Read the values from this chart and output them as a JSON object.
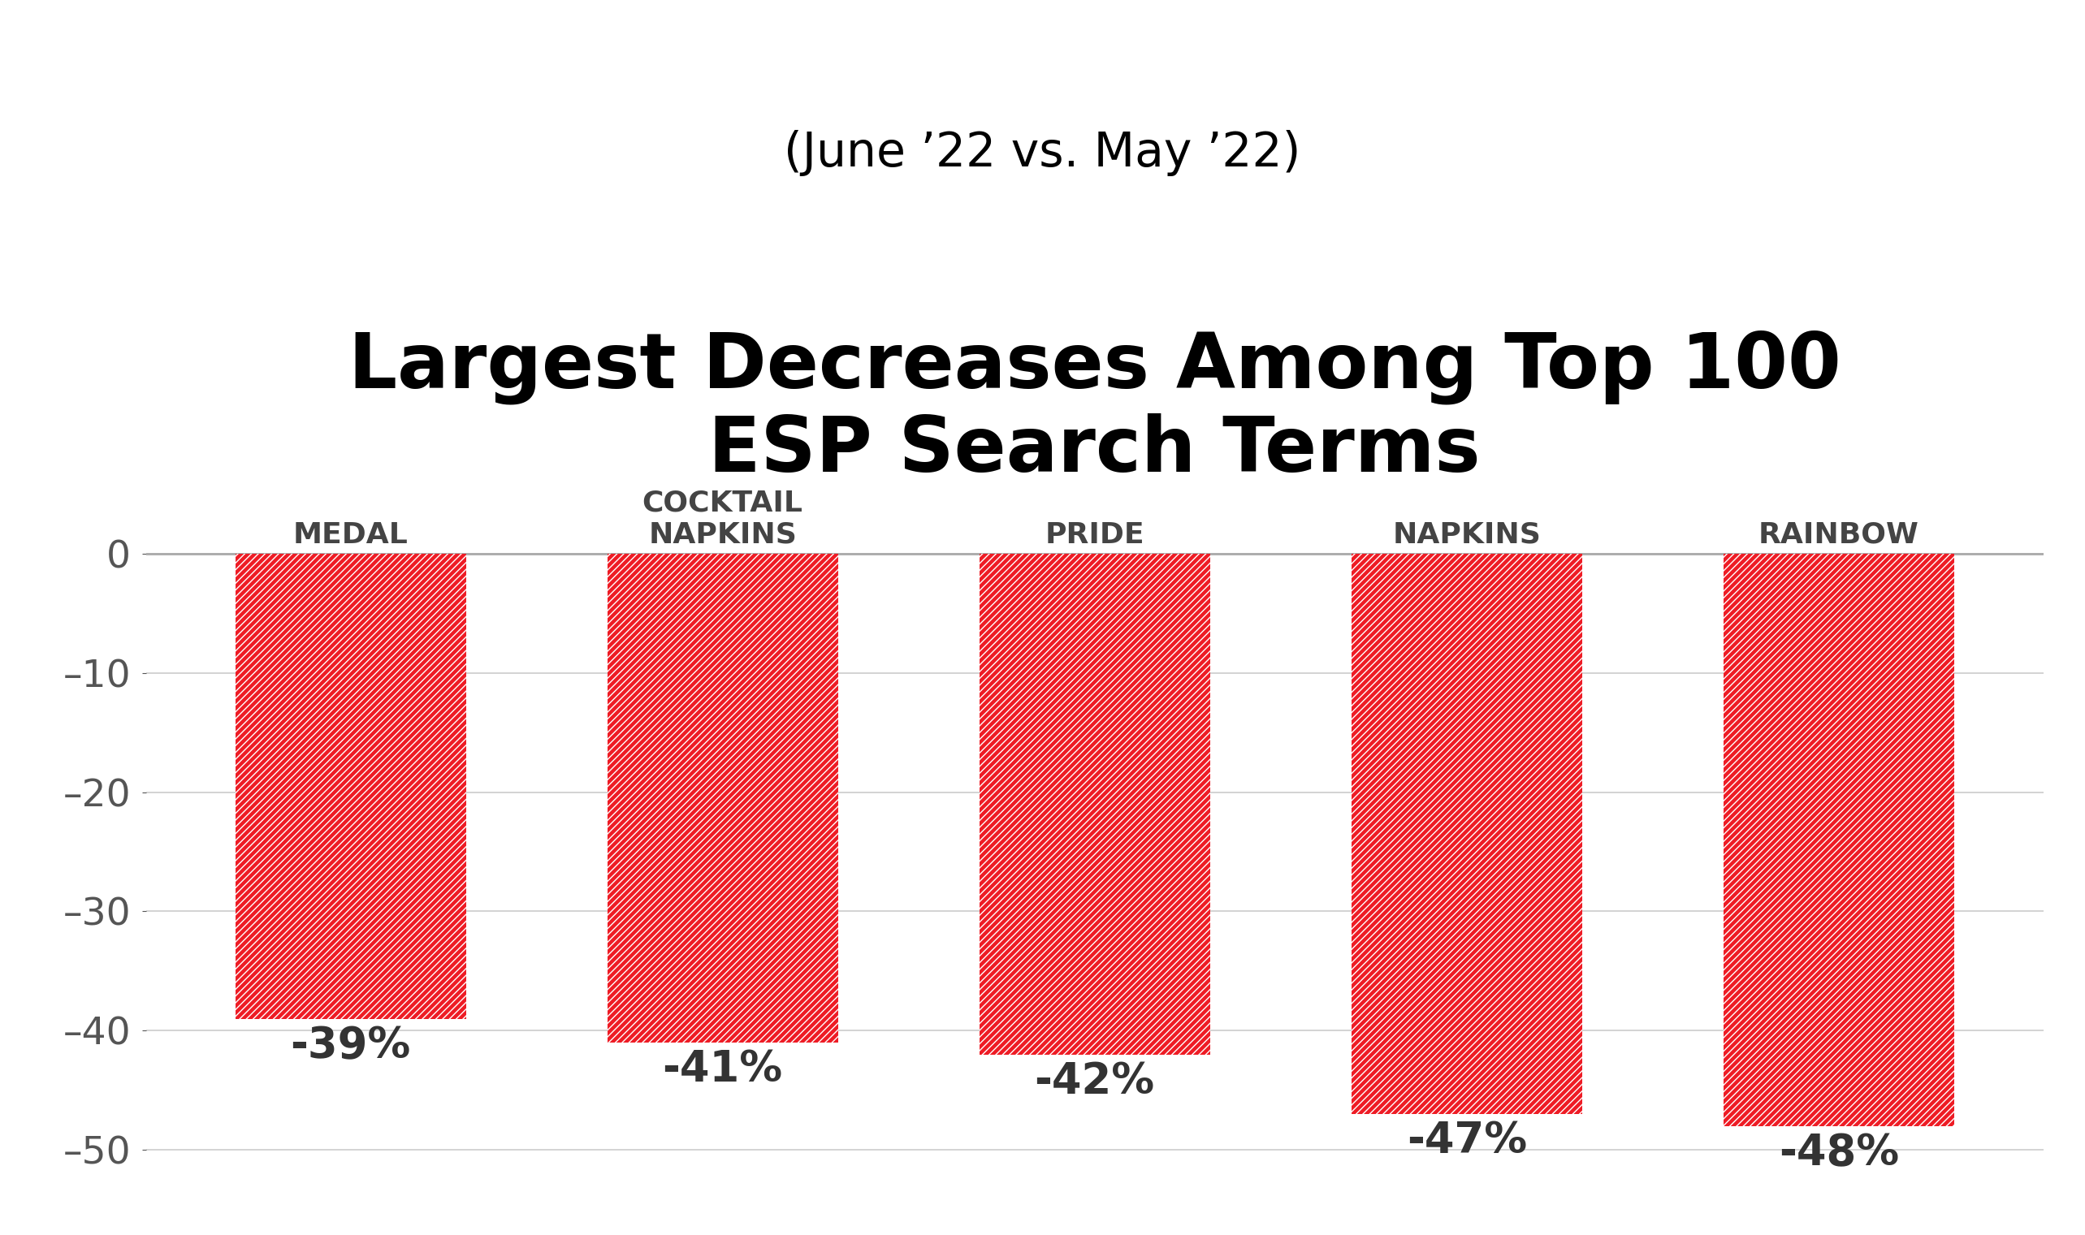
{
  "title_line1": "Largest Decreases Among Top 100",
  "title_line2": "ESP Search Terms",
  "subtitle": "(June ’22 vs. May ’22)",
  "categories": [
    "MEDAL",
    "COCKTAIL\nNAPKINS",
    "PRIDE",
    "NAPKINS",
    "RAINBOW"
  ],
  "values": [
    -39,
    -41,
    -42,
    -47,
    -48
  ],
  "labels": [
    "-39%",
    "-41%",
    "-42%",
    "-47%",
    "-48%"
  ],
  "bar_color": "#ee1c25",
  "hatch_color": "#ffffff",
  "background_color": "#ffffff",
  "ylim": [
    -53,
    5
  ],
  "yticks": [
    0,
    -10,
    -20,
    -30,
    -40,
    -50
  ],
  "title_fontsize": 68,
  "subtitle_fontsize": 42,
  "tick_fontsize": 34,
  "label_fontsize": 38,
  "category_fontsize": 26
}
